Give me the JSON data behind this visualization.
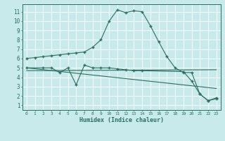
{
  "xlabel": "Humidex (Indice chaleur)",
  "background_color": "#c8eaea",
  "line_color": "#2a7060",
  "grid_color": "#ffffff",
  "xlim": [
    -0.5,
    23.5
  ],
  "ylim": [
    0.5,
    11.8
  ],
  "xticks": [
    0,
    1,
    2,
    3,
    4,
    5,
    6,
    7,
    8,
    9,
    10,
    11,
    12,
    13,
    14,
    15,
    16,
    17,
    18,
    19,
    20,
    21,
    22,
    23
  ],
  "yticks": [
    1,
    2,
    3,
    4,
    5,
    6,
    7,
    8,
    9,
    10,
    11
  ],
  "lines": [
    {
      "x": [
        0,
        1,
        2,
        3,
        4,
        5,
        6,
        7,
        8,
        9,
        10,
        11,
        12,
        13,
        14,
        15,
        16,
        17,
        18,
        19,
        20,
        21,
        22,
        23
      ],
      "y": [
        6.0,
        6.1,
        6.2,
        6.3,
        6.4,
        6.5,
        6.6,
        6.7,
        7.2,
        8.0,
        10.0,
        11.2,
        10.9,
        11.1,
        11.0,
        9.5,
        7.8,
        6.2,
        5.0,
        4.5,
        4.5,
        2.2,
        1.5,
        1.7
      ],
      "has_markers": true
    },
    {
      "x": [
        0,
        2,
        3,
        4,
        5,
        6,
        7,
        8,
        9,
        10,
        11,
        12,
        13,
        14,
        19,
        20,
        21,
        22,
        23
      ],
      "y": [
        5.0,
        5.0,
        5.0,
        4.5,
        5.0,
        3.2,
        5.3,
        5.0,
        5.0,
        5.0,
        4.9,
        4.8,
        4.7,
        4.7,
        4.6,
        3.6,
        2.2,
        1.5,
        1.8
      ],
      "has_markers": true
    },
    {
      "x": [
        0,
        23
      ],
      "y": [
        4.7,
        4.8
      ],
      "has_markers": false
    },
    {
      "x": [
        0,
        23
      ],
      "y": [
        5.0,
        2.8
      ],
      "has_markers": false
    }
  ]
}
